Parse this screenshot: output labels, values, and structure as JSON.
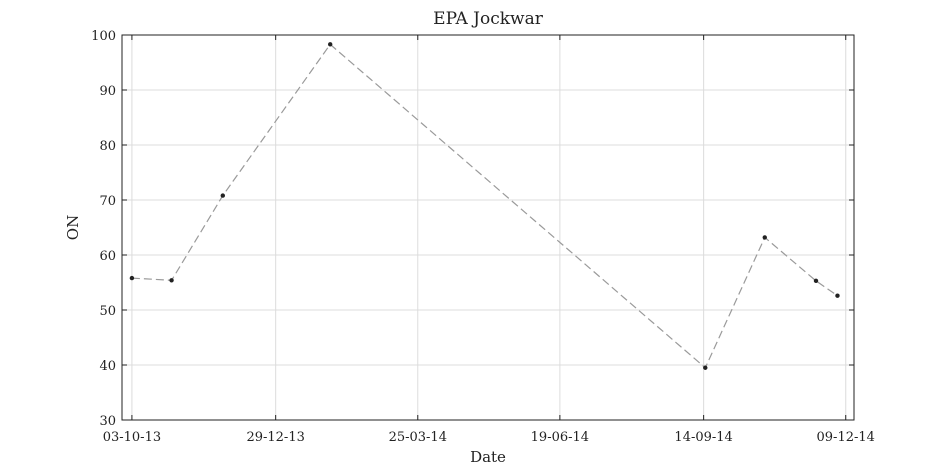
{
  "chart_data": {
    "type": "line",
    "title": "EPA Jockwar",
    "xlabel": "Date",
    "ylabel": "ON",
    "x_tick_labels": [
      "03-10-13",
      "29-12-13",
      "25-03-14",
      "19-06-14",
      "14-09-14",
      "09-12-14"
    ],
    "x_tick_dates": [
      "2013-10-03",
      "2013-12-29",
      "2014-03-25",
      "2014-06-19",
      "2014-09-14",
      "2014-12-09"
    ],
    "xlim": [
      "2013-09-27",
      "2014-12-14"
    ],
    "ylim": [
      30,
      100
    ],
    "y_ticks": [
      30,
      40,
      50,
      60,
      70,
      80,
      90,
      100
    ],
    "grid": true,
    "line_style": "dashed",
    "line_color": "#9a9a9a",
    "marker_color": "#222222",
    "series": [
      {
        "x": [
          "2013-10-03",
          "2013-10-27",
          "2013-11-27",
          "2014-01-31",
          "2014-09-15",
          "2014-10-21",
          "2014-11-21",
          "2014-12-04"
        ],
        "values": [
          55.8,
          55.4,
          70.8,
          98.3,
          39.5,
          63.2,
          55.3,
          52.6
        ]
      }
    ]
  }
}
